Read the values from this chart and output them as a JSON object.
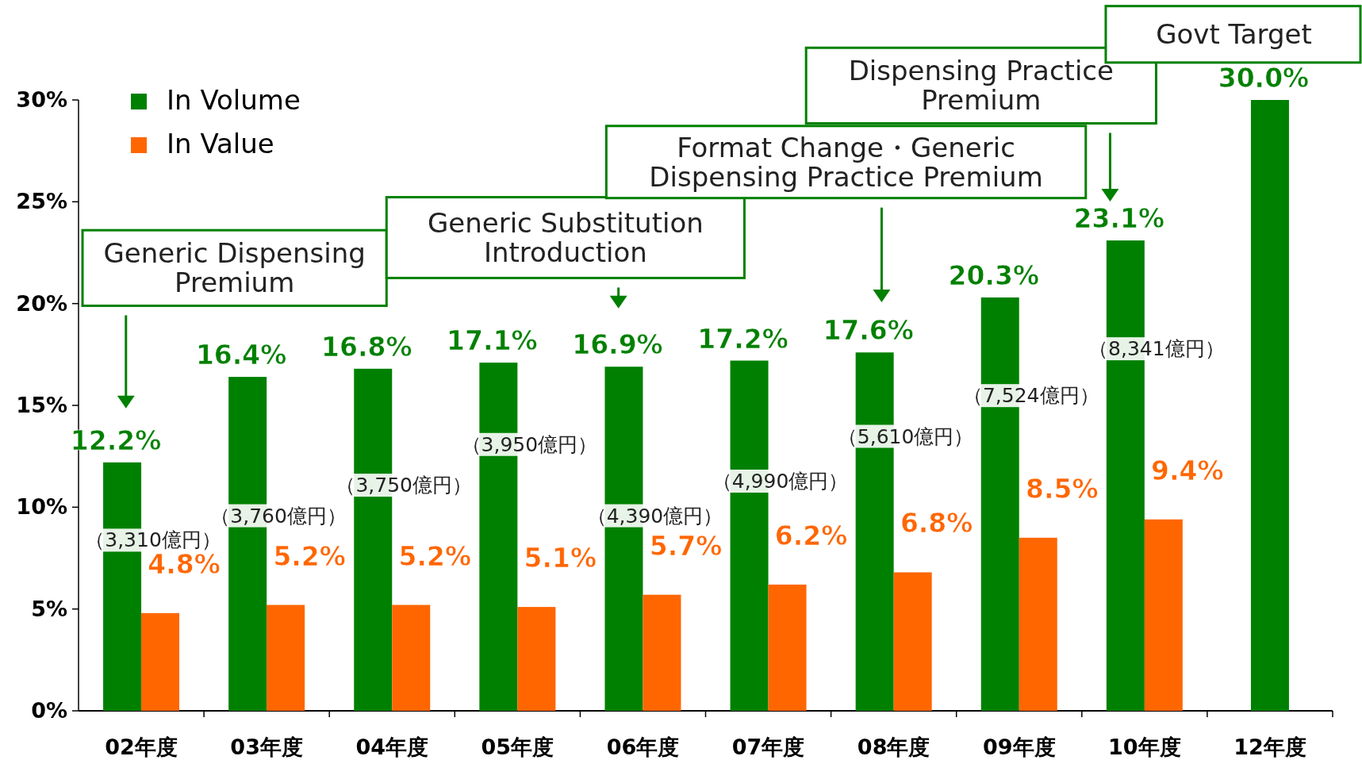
{
  "chart_data": {
    "type": "bar",
    "categories": [
      "02年度",
      "03年度",
      "04年度",
      "05年度",
      "06年度",
      "07年度",
      "08年度",
      "09年度",
      "10年度",
      "12年度"
    ],
    "series": [
      {
        "name": "In Volume",
        "color": "#008000",
        "values": [
          12.2,
          16.4,
          16.8,
          17.1,
          16.9,
          17.2,
          17.6,
          20.3,
          23.1,
          30.0
        ],
        "value_labels": [
          "12.2%",
          "16.4%",
          "16.8%",
          "17.1%",
          "16.9%",
          "17.2%",
          "17.6%",
          "20.3%",
          "23.1%",
          "30.0%"
        ]
      },
      {
        "name": "In Value",
        "color": "#ff6600",
        "values": [
          4.8,
          5.2,
          5.2,
          5.1,
          5.7,
          6.2,
          6.8,
          8.5,
          9.4,
          null
        ],
        "value_labels": [
          "4.8%",
          "5.2%",
          "5.2%",
          "5.1%",
          "5.7%",
          "6.2%",
          "6.8%",
          "8.5%",
          "9.4%",
          null
        ]
      }
    ],
    "ylim": [
      0,
      30
    ],
    "yticks": [
      {
        "value": 0,
        "label": "0%"
      },
      {
        "value": 5,
        "label": "5%"
      },
      {
        "value": 10,
        "label": "10%"
      },
      {
        "value": 15,
        "label": "15%"
      },
      {
        "value": 20,
        "label": "20%"
      },
      {
        "value": 25,
        "label": "25%"
      },
      {
        "value": 30,
        "label": "30%"
      }
    ],
    "legend": "top left",
    "annotations": [
      {
        "text": "（3,310億円）",
        "x": "02年度",
        "y": 8.4
      },
      {
        "text": "（3,760億円）",
        "x": "03年度",
        "y": 9.6
      },
      {
        "text": "（3,750億円）",
        "x": "04年度",
        "y": 11.1
      },
      {
        "text": "（3,950億円）",
        "x": "05年度",
        "y": 13.1
      },
      {
        "text": "（4,390億円）",
        "x": "06年度",
        "y": 9.6
      },
      {
        "text": "（4,990億円）",
        "x": "07年度",
        "y": 11.3
      },
      {
        "text": "（5,610億円）",
        "x": "08年度",
        "y": 13.5
      },
      {
        "text": "（7,524億円）",
        "x": "09年度",
        "y": 15.5
      },
      {
        "text": "（8,341億円）",
        "x": "10年度",
        "y": 17.8
      },
      "Generic Dispensing\nPremium",
      "Generic Substitution\nIntroduction",
      "Format Change・Generic\nDispensing Practice Premium",
      "Dispensing Practice\nPremium",
      "Govt Target"
    ]
  }
}
